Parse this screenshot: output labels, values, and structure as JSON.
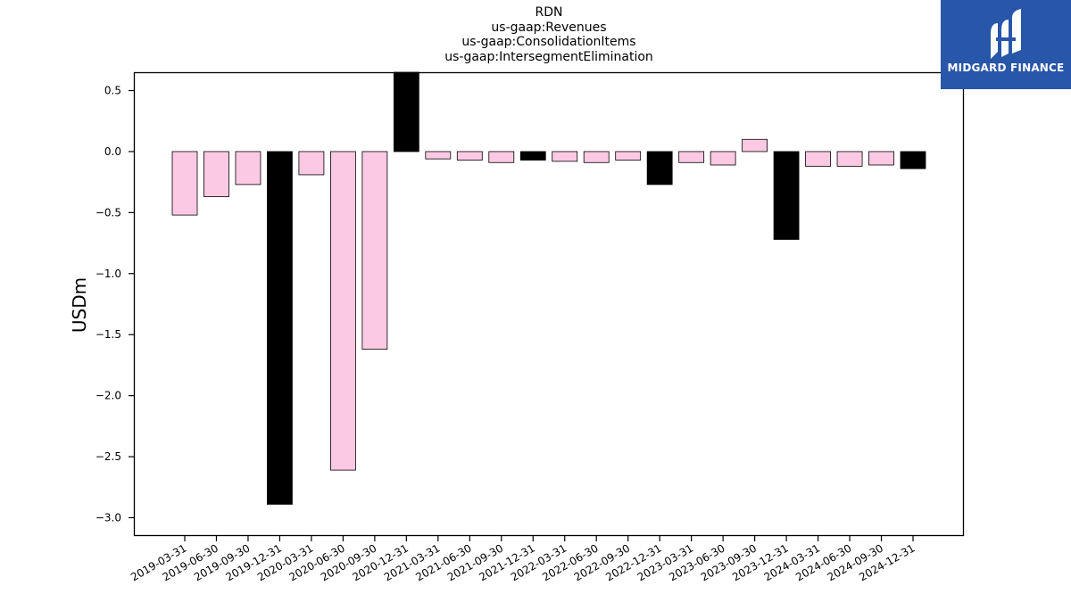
{
  "chart_data": {
    "type": "bar",
    "title_lines": [
      "RDN",
      "us-gaap:Revenues",
      "us-gaap:ConsolidationItems",
      "us-gaap:IntersegmentElimination"
    ],
    "ylabel": "USDm",
    "xlabel": "",
    "ylim": [
      -3.15,
      0.65
    ],
    "yticks": [
      0.5,
      0.0,
      -0.5,
      -1.0,
      -1.5,
      -2.0,
      -2.5,
      -3.0
    ],
    "ytick_labels": [
      "0.5",
      "0.0",
      "−0.5",
      "−1.0",
      "−1.5",
      "−2.0",
      "−2.5",
      "−3.0"
    ],
    "grid": false,
    "categories": [
      "2019-03-31",
      "2019-06-30",
      "2019-09-30",
      "2019-12-31",
      "2020-03-31",
      "2020-06-30",
      "2020-09-30",
      "2020-12-31",
      "2021-03-31",
      "2021-06-30",
      "2021-09-30",
      "2021-12-31",
      "2022-03-31",
      "2022-06-30",
      "2022-09-30",
      "2022-12-31",
      "2023-03-31",
      "2023-06-30",
      "2023-09-30",
      "2023-12-31",
      "2024-03-31",
      "2024-06-30",
      "2024-09-30",
      "2024-12-31"
    ],
    "values": [
      -0.52,
      -0.37,
      -0.27,
      -2.89,
      -0.19,
      -2.61,
      -1.62,
      0.65,
      -0.06,
      -0.07,
      -0.09,
      -0.07,
      -0.08,
      -0.09,
      -0.07,
      -0.27,
      -0.09,
      -0.11,
      0.1,
      -0.72,
      -0.12,
      -0.12,
      -0.11,
      -0.14
    ],
    "bar_colors": [
      "#fbc9e3",
      "#fbc9e3",
      "#fbc9e3",
      "#000000",
      "#fbc9e3",
      "#fbc9e3",
      "#fbc9e3",
      "#000000",
      "#fbc9e3",
      "#fbc9e3",
      "#fbc9e3",
      "#000000",
      "#fbc9e3",
      "#fbc9e3",
      "#fbc9e3",
      "#000000",
      "#fbc9e3",
      "#fbc9e3",
      "#fbc9e3",
      "#000000",
      "#fbc9e3",
      "#fbc9e3",
      "#fbc9e3",
      "#000000"
    ]
  },
  "logo": {
    "text": "MIDGARD FINANCE",
    "background": "#2856a8",
    "icon": "midgard-logo-icon"
  }
}
